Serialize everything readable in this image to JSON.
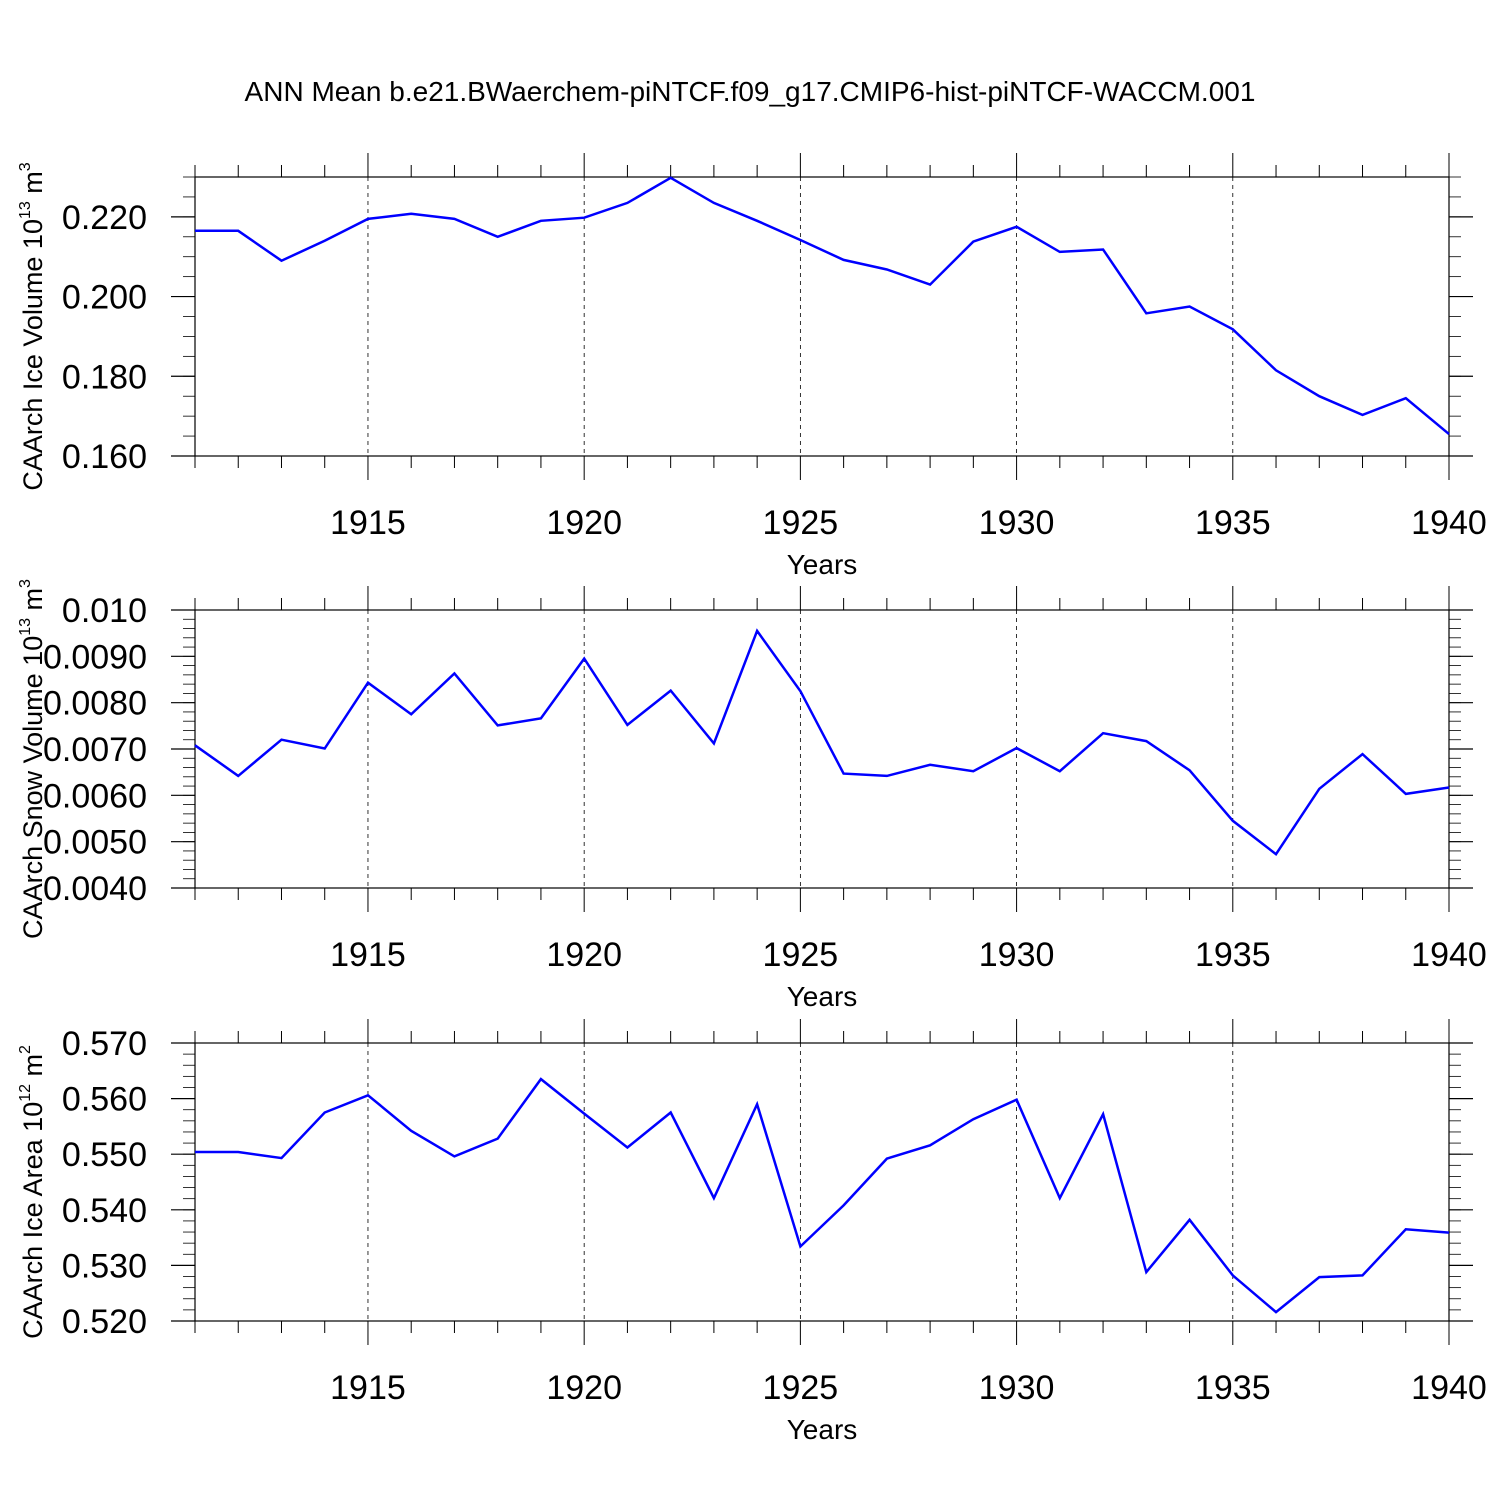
{
  "title": "ANN Mean b.e21.BWaerchem-piNTCF.f09_g17.CMIP6-hist-piNTCF-WACCM.001",
  "chart_data": [
    {
      "type": "line",
      "xlabel": "Years",
      "ylabel": "CAArch Ice Volume 10",
      "ylabel_exp": "13",
      "ylabel_unit": " m",
      "ylabel_unit_exp": "3",
      "color": "#0000ff",
      "xlim": [
        1911,
        1940
      ],
      "ylim": [
        0.16,
        0.23
      ],
      "yticks": [
        0.16,
        0.18,
        0.2,
        0.22
      ],
      "ytick_labels": [
        "0.160",
        "0.180",
        "0.200",
        "0.220"
      ],
      "yminor_step": 0.005,
      "xticks": [
        1915,
        1920,
        1925,
        1930,
        1935,
        1940
      ],
      "xtick_labels": [
        "1915",
        "1920",
        "1925",
        "1930",
        "1935",
        "1940"
      ],
      "x": [
        1911,
        1912,
        1913,
        1914,
        1915,
        1916,
        1917,
        1918,
        1919,
        1920,
        1921,
        1922,
        1923,
        1924,
        1925,
        1926,
        1927,
        1928,
        1929,
        1930,
        1931,
        1932,
        1933,
        1934,
        1935,
        1936,
        1937,
        1938,
        1939,
        1940
      ],
      "values": [
        0.2165,
        0.2165,
        0.209,
        0.214,
        0.2195,
        0.2208,
        0.2195,
        0.215,
        0.219,
        0.2198,
        0.2235,
        0.2298,
        0.2235,
        0.219,
        0.2142,
        0.2092,
        0.2068,
        0.203,
        0.2138,
        0.2175,
        0.2112,
        0.2118,
        0.1958,
        0.1975,
        0.1918,
        0.1815,
        0.175,
        0.1703,
        0.1745,
        0.1655
      ]
    },
    {
      "type": "line",
      "xlabel": "Years",
      "ylabel": "CAArch Snow Volume 10",
      "ylabel_exp": "13",
      "ylabel_unit": " m",
      "ylabel_unit_exp": "3",
      "color": "#0000ff",
      "xlim": [
        1911,
        1940
      ],
      "ylim": [
        0.004,
        0.01
      ],
      "yticks": [
        0.004,
        0.005,
        0.006,
        0.007,
        0.008,
        0.009,
        0.01
      ],
      "ytick_labels": [
        "0.0040",
        "0.0050",
        "0.0060",
        "0.0070",
        "0.0080",
        "0.0090",
        "0.010"
      ],
      "yminor_step": 0.0002,
      "xticks": [
        1915,
        1920,
        1925,
        1930,
        1935,
        1940
      ],
      "xtick_labels": [
        "1915",
        "1920",
        "1925",
        "1930",
        "1935",
        "1940"
      ],
      "x": [
        1911,
        1912,
        1913,
        1914,
        1915,
        1916,
        1917,
        1918,
        1919,
        1920,
        1921,
        1922,
        1923,
        1924,
        1925,
        1926,
        1927,
        1928,
        1929,
        1930,
        1931,
        1932,
        1933,
        1934,
        1935,
        1936,
        1937,
        1938,
        1939,
        1940
      ],
      "values": [
        0.00708,
        0.00642,
        0.0072,
        0.00701,
        0.00843,
        0.00775,
        0.00863,
        0.00751,
        0.00766,
        0.00895,
        0.00752,
        0.00826,
        0.00712,
        0.00955,
        0.00825,
        0.00647,
        0.00642,
        0.00666,
        0.00652,
        0.00702,
        0.00652,
        0.00734,
        0.00717,
        0.00654,
        0.00545,
        0.00473,
        0.00614,
        0.00689,
        0.00603,
        0.00617
      ]
    },
    {
      "type": "line",
      "xlabel": "Years",
      "ylabel": "CAArch Ice Area 10",
      "ylabel_exp": "12",
      "ylabel_unit": " m",
      "ylabel_unit_exp": "2",
      "color": "#0000ff",
      "xlim": [
        1911,
        1940
      ],
      "ylim": [
        0.52,
        0.57
      ],
      "yticks": [
        0.52,
        0.53,
        0.54,
        0.55,
        0.56,
        0.57
      ],
      "ytick_labels": [
        "0.520",
        "0.530",
        "0.540",
        "0.550",
        "0.560",
        "0.570"
      ],
      "yminor_step": 0.002,
      "xticks": [
        1915,
        1920,
        1925,
        1930,
        1935,
        1940
      ],
      "xtick_labels": [
        "1915",
        "1920",
        "1925",
        "1930",
        "1935",
        "1940"
      ],
      "x": [
        1911,
        1912,
        1913,
        1914,
        1915,
        1916,
        1917,
        1918,
        1919,
        1920,
        1921,
        1922,
        1923,
        1924,
        1925,
        1926,
        1927,
        1928,
        1929,
        1930,
        1931,
        1932,
        1933,
        1934,
        1935,
        1936,
        1937,
        1938,
        1939,
        1940
      ],
      "values": [
        0.5504,
        0.5504,
        0.5493,
        0.5575,
        0.5606,
        0.5542,
        0.5496,
        0.5528,
        0.5635,
        0.5573,
        0.5512,
        0.5575,
        0.5421,
        0.559,
        0.5334,
        0.5408,
        0.5492,
        0.5516,
        0.5563,
        0.5598,
        0.5421,
        0.5572,
        0.5288,
        0.5382,
        0.5282,
        0.5216,
        0.5279,
        0.5282,
        0.5365,
        0.5359
      ]
    }
  ]
}
